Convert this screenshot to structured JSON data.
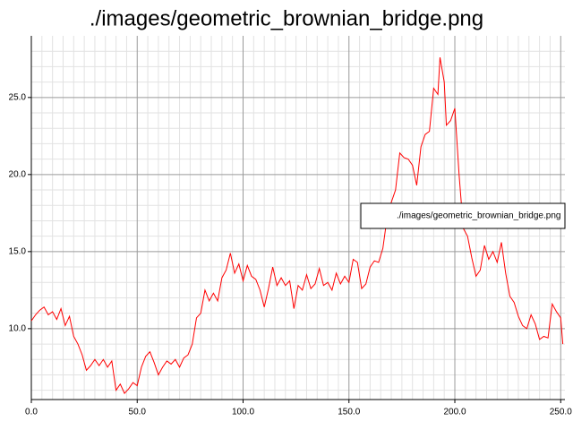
{
  "chart_data": {
    "type": "line",
    "title": "./images/geometric_brownian_bridge.png",
    "x": [
      0,
      2,
      4,
      6,
      8,
      10,
      12,
      14,
      16,
      18,
      20,
      22,
      24,
      26,
      28,
      30,
      32,
      34,
      36,
      38,
      40,
      42,
      44,
      46,
      48,
      50,
      52,
      54,
      56,
      58,
      60,
      62,
      64,
      66,
      68,
      70,
      72,
      74,
      76,
      78,
      80,
      82,
      84,
      86,
      88,
      90,
      92,
      94,
      96,
      98,
      100,
      102,
      104,
      106,
      108,
      110,
      112,
      114,
      116,
      118,
      120,
      122,
      124,
      126,
      128,
      130,
      132,
      134,
      136,
      138,
      140,
      142,
      144,
      146,
      148,
      150,
      152,
      154,
      156,
      158,
      160,
      162,
      164,
      166,
      168,
      170,
      172,
      174,
      176,
      178,
      180,
      182,
      184,
      186,
      188,
      190,
      192,
      193,
      195,
      196,
      198,
      200,
      202,
      204,
      206,
      208,
      210,
      212,
      214,
      216,
      218,
      220,
      222,
      224,
      226,
      228,
      230,
      232,
      234,
      236,
      238,
      240,
      242,
      244,
      246,
      248,
      250,
      251
    ],
    "series": [
      {
        "name": "./images/geometric_brownian_bridge.png",
        "color": "#ff0000",
        "values": [
          10.5,
          10.9,
          11.2,
          11.4,
          10.9,
          11.1,
          10.6,
          11.3,
          10.2,
          10.8,
          9.5,
          9.0,
          8.3,
          7.3,
          7.6,
          8.0,
          7.6,
          8.0,
          7.5,
          7.9,
          6.0,
          6.4,
          5.8,
          6.1,
          6.5,
          6.3,
          7.5,
          8.2,
          8.5,
          7.8,
          7.0,
          7.5,
          7.9,
          7.7,
          8.0,
          7.5,
          8.1,
          8.3,
          9.0,
          10.7,
          11.0,
          12.5,
          11.8,
          12.3,
          11.8,
          13.3,
          13.8,
          14.9,
          13.6,
          14.2,
          13.1,
          14.1,
          13.4,
          13.2,
          12.5,
          11.4,
          12.6,
          14.0,
          12.8,
          13.3,
          12.8,
          13.1,
          11.3,
          12.8,
          12.5,
          13.5,
          12.6,
          12.9,
          13.9,
          12.8,
          13.0,
          12.5,
          13.6,
          12.9,
          13.4,
          13.0,
          14.5,
          14.3,
          12.6,
          12.9,
          14.0,
          14.4,
          14.3,
          15.2,
          17.2,
          18.2,
          19.0,
          21.4,
          21.1,
          21.0,
          20.6,
          19.3,
          21.8,
          22.6,
          22.8,
          25.6,
          25.2,
          27.6,
          26.0,
          23.2,
          23.5,
          24.3,
          20.0,
          16.5,
          16.0,
          14.6,
          13.4,
          13.8,
          15.4,
          14.5,
          15.0,
          14.3,
          15.6,
          13.6,
          12.1,
          11.7,
          10.8,
          10.2,
          10.0,
          10.9,
          10.3,
          9.3,
          9.5,
          9.4,
          11.6,
          11.1,
          10.7,
          9.0
        ]
      }
    ],
    "xlim": [
      0,
      252
    ],
    "ylim": [
      5.4,
      29
    ],
    "xticks": [
      {
        "value": 0,
        "label": "0.0"
      },
      {
        "value": 50,
        "label": "50.0"
      },
      {
        "value": 100,
        "label": "100.0"
      },
      {
        "value": 150,
        "label": "150.0"
      },
      {
        "value": 200,
        "label": "200.0"
      },
      {
        "value": 250,
        "label": "250.0"
      }
    ],
    "yticks": [
      {
        "value": 10,
        "label": "10.0"
      },
      {
        "value": 15,
        "label": "15.0"
      },
      {
        "value": 20,
        "label": "20.0"
      },
      {
        "value": 25,
        "label": "25.0"
      }
    ],
    "xminorticks": [
      5,
      10,
      15,
      20,
      25,
      30,
      35,
      40,
      45,
      55,
      60,
      65,
      70,
      75,
      80,
      85,
      90,
      95,
      105,
      110,
      115,
      120,
      125,
      130,
      135,
      140,
      145,
      155,
      160,
      165,
      170,
      175,
      180,
      185,
      190,
      195,
      205,
      210,
      215,
      220,
      225,
      230,
      235,
      240,
      245
    ],
    "yminorticks": [
      6,
      7,
      8,
      9,
      11,
      12,
      13,
      14,
      16,
      17,
      18,
      19,
      21,
      22,
      23,
      24,
      26,
      27,
      28
    ],
    "grid": true,
    "legend": true
  }
}
